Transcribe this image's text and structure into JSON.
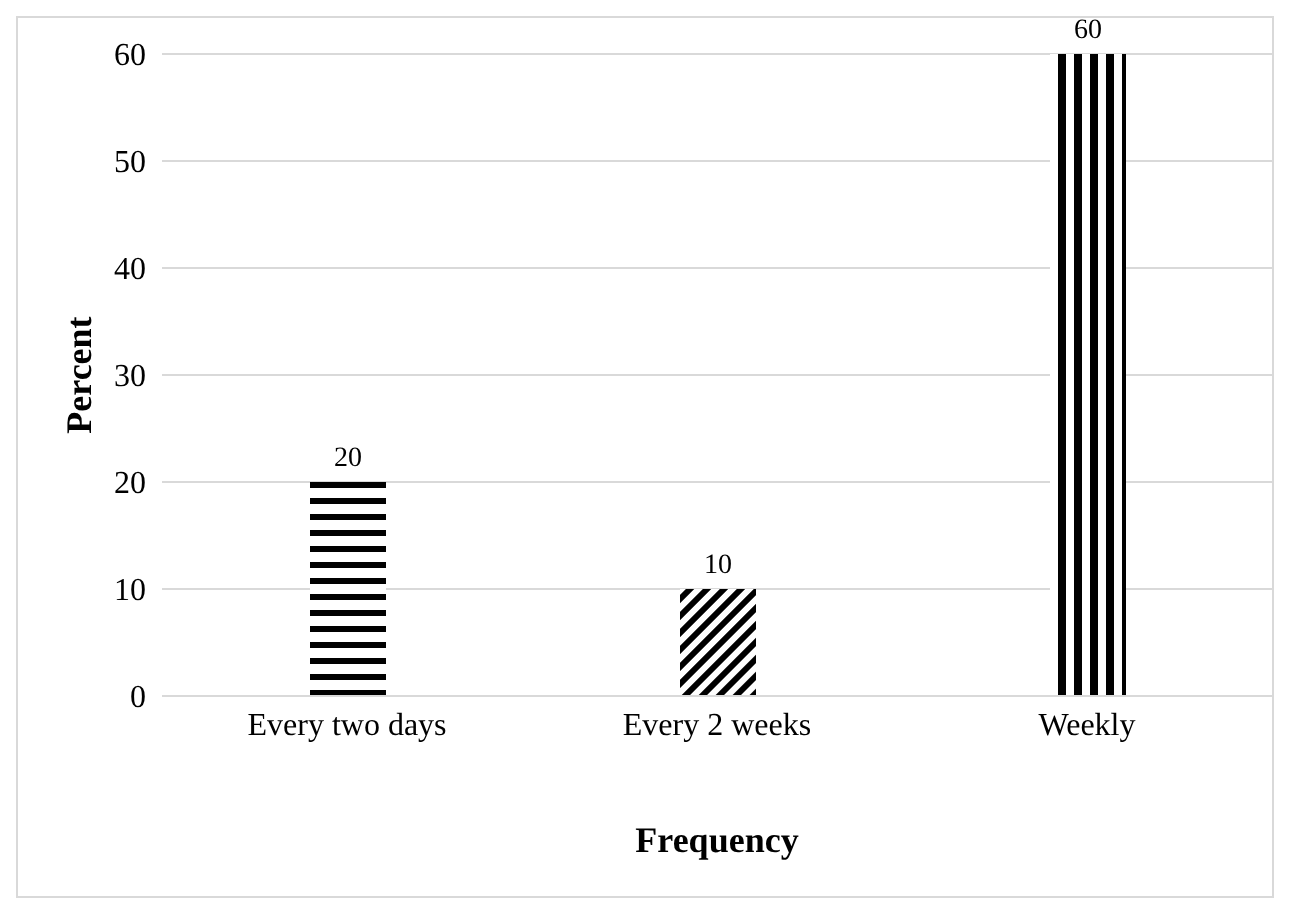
{
  "chart_data": {
    "type": "bar",
    "xlabel": "Frequency",
    "ylabel": "Percent",
    "categories": [
      "Every  two days",
      "Every 2 weeks",
      "Weekly"
    ],
    "values": [
      20,
      10,
      60
    ],
    "colors": [
      "#000000",
      "#000000",
      "#000000"
    ],
    "ylim": [
      0,
      60
    ],
    "yticks": [
      0,
      10,
      20,
      30,
      40,
      50,
      60
    ],
    "grid": "y",
    "data_labels": true
  }
}
